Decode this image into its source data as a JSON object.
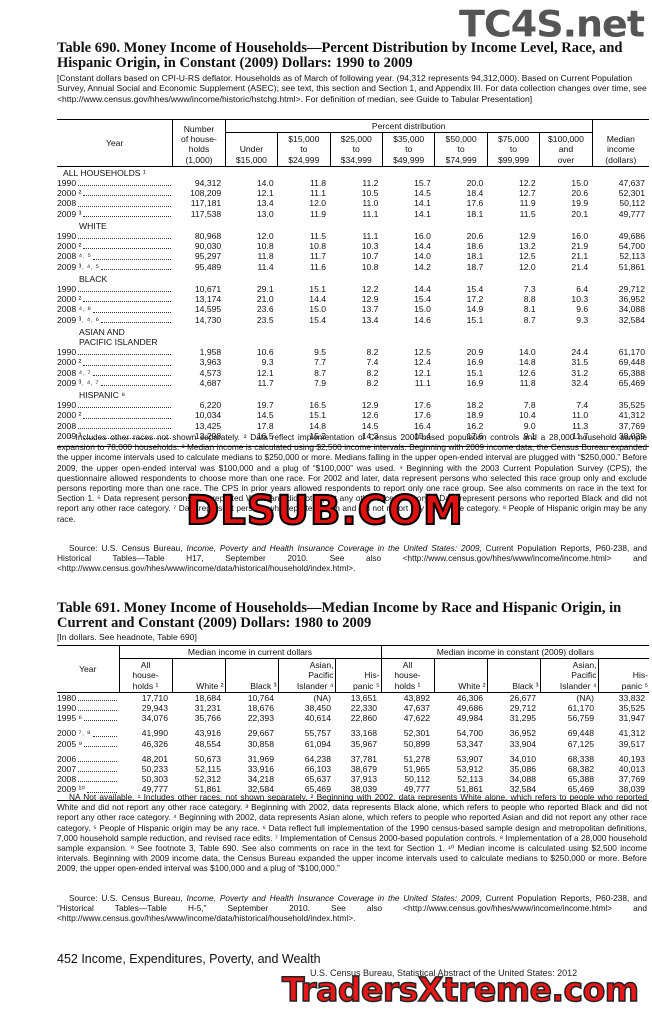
{
  "watermarks": {
    "top": "TC4S.net",
    "middle": "DLSUB.COM",
    "bottom": "TradersXtreme.com"
  },
  "table690": {
    "title": "Table 690. Money Income of Households—Percent Distribution by Income Level, Race, and  Hispanic Origin, in Constant (2009) Dollars: 1990 to 2009",
    "headnote": "[Constant dollars based on CPI-U-RS deflator. Households as of March of following year. (94,312 represents 94,312,000). Based on Current Population Survey, Annual Social and Economic Supplement (ASEC); see text, this section and Section 1, and Appendix III. For data collection changes over time, see <http://www.census.gov/hhes/www/income/historic/hstchg.html>. For definition of median, see Guide to Tabular Presentation]",
    "year_header": "Year",
    "households_header": "Number\nof house-\nholds\n(1,000)",
    "percent_header": "Percent distribution",
    "income_headers": [
      "Under\n$15,000",
      "$15,000\nto\n$24,999",
      "$25,000\nto\n$34,999",
      "$35,000\nto\n$49,999",
      "$50,000\nto\n$74,999",
      "$75,000\nto\n$99,999",
      "$100,000\nand\nover"
    ],
    "median_header": "Median\nincome\n(dollars)",
    "groups": [
      {
        "label": "ALL HOUSEHOLDS ¹",
        "rows": [
          {
            "year": "1990",
            "values": [
              "94,312",
              "14.0",
              "11.8",
              "11.2",
              "15.7",
              "20.0",
              "12.2",
              "15.0",
              "47,637"
            ]
          },
          {
            "year": "2000 ²",
            "values": [
              "108,209",
              "12.1",
              "11.1",
              "10.5",
              "14.5",
              "18.4",
              "12.7",
              "20.6",
              "52,301"
            ]
          },
          {
            "year": "2008",
            "values": [
              "117,181",
              "13.4",
              "12.0",
              "11.0",
              "14.1",
              "17.6",
              "11.9",
              "19.9",
              "50,112"
            ]
          },
          {
            "year": "2009 ³",
            "values": [
              "117,538",
              "13.0",
              "11.9",
              "11.1",
              "14.1",
              "18.1",
              "11.5",
              "20.1",
              "49,777"
            ]
          }
        ]
      },
      {
        "label": "WHITE",
        "rows": [
          {
            "year": "1990",
            "values": [
              "80,968",
              "12.0",
              "11.5",
              "11.1",
              "16.0",
              "20.6",
              "12.9",
              "16.0",
              "49,686"
            ]
          },
          {
            "year": "2000 ²",
            "values": [
              "90,030",
              "10.8",
              "10.8",
              "10.3",
              "14.4",
              "18.6",
              "13.2",
              "21.9",
              "54,700"
            ]
          },
          {
            "year": "2008 ⁴˒ ⁵",
            "values": [
              "95,297",
              "11.8",
              "11.7",
              "10.7",
              "14.0",
              "18.1",
              "12.5",
              "21.1",
              "52,113"
            ]
          },
          {
            "year": "2009 ³˒ ⁴˒ ⁵",
            "values": [
              "95,489",
              "11.4",
              "11.6",
              "10.8",
              "14.2",
              "18.7",
              "12.0",
              "21.4",
              "51,861"
            ]
          }
        ]
      },
      {
        "label": "BLACK",
        "rows": [
          {
            "year": "1990",
            "values": [
              "10,671",
              "29.1",
              "15.1",
              "12.2",
              "14.4",
              "15.4",
              "7.3",
              "6.4",
              "29,712"
            ]
          },
          {
            "year": "2000 ²",
            "values": [
              "13,174",
              "21.0",
              "14.4",
              "12.9",
              "15.4",
              "17.2",
              "8.8",
              "10.3",
              "36,952"
            ]
          },
          {
            "year": "2008 ⁴˒ ⁶",
            "values": [
              "14,595",
              "23.6",
              "15.0",
              "13.7",
              "15.0",
              "14.9",
              "8.1",
              "9.6",
              "34,088"
            ]
          },
          {
            "year": "2009 ³˒ ⁴˒ ⁶",
            "values": [
              "14,730",
              "23.5",
              "15.4",
              "13.4",
              "14.6",
              "15.1",
              "8.7",
              "9.3",
              "32,584"
            ]
          }
        ]
      },
      {
        "label": "ASIAN AND\nPACIFIC ISLANDER",
        "rows": [
          {
            "year": "1990",
            "values": [
              "1,958",
              "10.6",
              "9.5",
              "8.2",
              "12.5",
              "20.9",
              "14.0",
              "24.4",
              "61,170"
            ]
          },
          {
            "year": "2000 ²",
            "values": [
              "3,963",
              "9.3",
              "7.7",
              "7.4",
              "12.4",
              "16.9",
              "14.8",
              "31.5",
              "69,448"
            ]
          },
          {
            "year": "2008 ⁴˒ ⁷",
            "values": [
              "4,573",
              "12.1",
              "8.7",
              "8.2",
              "12.1",
              "15.1",
              "12.6",
              "31.2",
              "65,388"
            ]
          },
          {
            "year": "2009 ³˒ ⁴˒ ⁷",
            "values": [
              "4,687",
              "11.7",
              "7.9",
              "8.2",
              "11.1",
              "16.9",
              "11.8",
              "32.4",
              "65,469"
            ]
          }
        ]
      },
      {
        "label": "HISPANIC ⁸",
        "rows": [
          {
            "year": "1990",
            "values": [
              "6,220",
              "19.7",
              "16.5",
              "12.9",
              "17.6",
              "18.2",
              "7.8",
              "7.4",
              "35,525"
            ]
          },
          {
            "year": "2000 ²",
            "values": [
              "10,034",
              "14.5",
              "15.1",
              "12.6",
              "17.6",
              "18.9",
              "10.4",
              "11.0",
              "41,312"
            ]
          },
          {
            "year": "2008",
            "values": [
              "13,425",
              "17.8",
              "14.8",
              "14.5",
              "16.4",
              "16.2",
              "9.0",
              "11.3",
              "37,769"
            ]
          },
          {
            "year": "2009 ³",
            "values": [
              "13,298",
              "16.5",
              "15.2",
              "14.3",
              "15.4",
              "17.6",
              "9.1",
              "11.7",
              "38,039"
            ]
          }
        ]
      }
    ],
    "footnotes": "¹ Includes other races not shown separately. ² Data reflect implementation of Census 2000-based population controls and a 28,000 household sample expansion to 78,000 households. ³ Median income is calculated using $2,500 income intervals. Beginning with 2009 income data, the Census Bureau expanded the upper income intervals used to calculate medians to $250,000 or more. Medians falling in the upper open-ended interval are plugged with “$250,000.” Before 2009, the upper open-ended interval was $100,000 and a plug of “$100,000” was used. ⁴ Beginning with the 2003 Current Population Survey (CPS), the questionnaire allowed respondents to choose more than one race. For 2002 and later, data represent persons who selected this race group only and exclude persons reporting more than one race. The CPS in prior years allowed respondents to report only one race group. See also comments on race in the text for Section 1. ⁵ Data represent persons who reported White and did not report any other race category. ⁶ Data represent persons who reported Black and did not report any other race category. ⁷ Data represent persons who reported Asian and did not report any other race category. ⁸ People of Hispanic origin may be any race.",
    "source": {
      "prefix": "Source: U.S. Census Bureau, ",
      "italic": "Income, Poverty and Health Insurance Coverage in the United States: 2009",
      "suffix": ", Current Population Reports, P60-238, and Historical Tables—Table H17, September 2010. See also <http://www.census.gov/hhes/www/income/income.html> and <http://www.census.gov/hhes/www/income/data/historical/household/index.html>."
    }
  },
  "table691": {
    "title": "Table 691. Money Income of Households—Median Income by Race and Hispanic Origin, in Current and Constant (2009) Dollars: 1980 to 2009",
    "headnote": "[In dollars. See headnote, Table 690]",
    "year_header": "Year",
    "current_header": "Median income in current dollars",
    "constant_header": "Median income in constant (2009) dollars",
    "sub_headers": [
      "All\nhouse-\nholds ¹",
      "White ²",
      "Black ³",
      "Asian,\nPacific\nIslander ⁴",
      "His-\npanic ⁵"
    ],
    "row_groups": [
      [
        {
          "year": "1980",
          "values": [
            "17,710",
            "18,684",
            "10,764",
            "(NA)",
            "13,651",
            "43,892",
            "46,306",
            "26,677",
            "(NA)",
            "33,832"
          ]
        },
        {
          "year": "1990",
          "values": [
            "29,943",
            "31,231",
            "18,676",
            "38,450",
            "22,330",
            "47,637",
            "49,686",
            "29,712",
            "61,170",
            "35,525"
          ]
        },
        {
          "year": "1995 ⁶",
          "values": [
            "34,076",
            "35,766",
            "22,393",
            "40,614",
            "22,860",
            "47,622",
            "49,984",
            "31,295",
            "56,759",
            "31,947"
          ]
        }
      ],
      [
        {
          "year": "2000 ⁷˒ ⁸",
          "values": [
            "41,990",
            "43,916",
            "29,667",
            "55,757",
            "33,168",
            "52,301",
            "54,700",
            "36,952",
            "69,448",
            "41,312"
          ]
        },
        {
          "year": "2005 ⁹",
          "values": [
            "46,326",
            "48,554",
            "30,858",
            "61,094",
            "35,967",
            "50,899",
            "53,347",
            "33,904",
            "67,125",
            "39,517"
          ]
        }
      ],
      [
        {
          "year": "2006",
          "values": [
            "48,201",
            "50,673",
            "31,969",
            "64,238",
            "37,781",
            "51,278",
            "53,907",
            "34,010",
            "68,338",
            "40,193"
          ]
        },
        {
          "year": "2007",
          "values": [
            "50,233",
            "52,115",
            "33,916",
            "66,103",
            "38,679",
            "51,965",
            "53,912",
            "35,086",
            "68,382",
            "40,013"
          ]
        },
        {
          "year": "2008",
          "values": [
            "50,303",
            "52,312",
            "34,218",
            "65,637",
            "37,913",
            "50,112",
            "52,113",
            "34,088",
            "65,388",
            "37,769"
          ]
        },
        {
          "year": "2009 ¹⁰",
          "values": [
            "49,777",
            "51,861",
            "32,584",
            "65,469",
            "38,039",
            "49,777",
            "51,861",
            "32,584",
            "65,469",
            "38,039"
          ]
        }
      ]
    ],
    "footnotes": "NA Not available. ¹ Includes other races, not shown separately. ² Beginning with 2002, data represents White alone, which refers to people who reported White and did not report any other race category. ³ Beginning with 2002, data represents Black alone, which refers to people who reported Black and did not report any other race category. ⁴ Beginning with 2002, data represents Asian alone, which refers to people who reported Asian and did not report any other race category. ⁵ People of Hispanic origin may be any race. ⁶ Data reflect full implementation of the 1990 census-based sample design and metropolitan definitions, 7,000 household sample reduction, and revised race edits. ⁷ Implementation of Census 2000-based population controls. ⁸ Implementation of a 28,000 household sample expansion. ⁹ See footnote 3, Table 690. See also comments on race in the text for Section 1. ¹⁰ Median income is calculated using $2,500 income intervals. Beginning with 2009 income data, the Census Bureau expanded the upper income intervals used to calculate medians to $250,000 or more. Before 2009, the upper open-ended interval was $100,000 and a plug of “$100,000.”",
    "source": {
      "prefix": "Source: U.S. Census Bureau, ",
      "italic": "Income, Poverty and Health Insurance Coverage in the United States: 2009",
      "suffix": ", Current Population Reports, P60-238, and “Historical Tables—Table H-5,” September 2010. See also <http://www.census.gov/hhes/www/income/income.html> and <http://www.census.gov/hhes/www/income/data/historical/household/index.html>."
    }
  },
  "footer": {
    "page": "452  Income, Expenditures, Poverty, and Wealth",
    "credit": "U.S. Census Bureau, Statistical Abstract of the United States: 2012"
  }
}
